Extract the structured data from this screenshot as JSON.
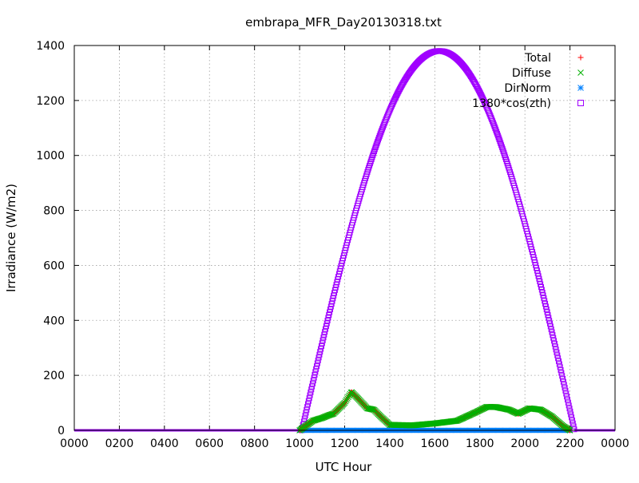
{
  "chart_data": {
    "type": "scatter",
    "title": "embrapa_MFR_Day20130318.txt",
    "xlabel": "UTC Hour",
    "ylabel": "Irradiance (W/m2)",
    "xlim": [
      0,
      24
    ],
    "ylim": [
      0,
      1400
    ],
    "x_tick_labels": [
      "0000",
      "0200",
      "0400",
      "0600",
      "0800",
      "1000",
      "1200",
      "1400",
      "1600",
      "1800",
      "2000",
      "2200",
      "0000"
    ],
    "y_tick_labels": [
      "0",
      "200",
      "400",
      "600",
      "800",
      "1000",
      "1200",
      "1400"
    ],
    "grid": true,
    "legend_position": "top-right",
    "series": [
      {
        "name": "Total",
        "color": "#ff0000",
        "marker": "plus",
        "x": [
          0,
          10.0,
          10.6,
          11.0,
          11.3,
          11.5,
          12.0,
          12.3,
          12.6,
          13.0,
          13.3,
          13.6,
          14.0,
          15.0,
          16.0,
          17.0,
          17.8,
          18.3,
          18.7,
          19.3,
          19.7,
          20.2,
          20.7,
          21.2,
          21.7,
          22.0,
          24
        ],
        "y": [
          0,
          0,
          35,
          45,
          55,
          60,
          100,
          140,
          115,
          80,
          75,
          50,
          20,
          18,
          25,
          35,
          65,
          85,
          85,
          75,
          60,
          80,
          75,
          50,
          15,
          0,
          0
        ]
      },
      {
        "name": "Diffuse",
        "color": "#00b000",
        "marker": "cross",
        "x": [
          0,
          10.0,
          10.6,
          11.0,
          11.3,
          11.5,
          12.0,
          12.3,
          12.6,
          13.0,
          13.3,
          13.6,
          14.0,
          15.0,
          16.0,
          17.0,
          17.8,
          18.3,
          18.7,
          19.3,
          19.7,
          20.2,
          20.7,
          21.2,
          21.7,
          22.0,
          24
        ],
        "y": [
          0,
          0,
          35,
          45,
          55,
          60,
          100,
          140,
          115,
          80,
          75,
          50,
          20,
          18,
          25,
          35,
          65,
          85,
          85,
          75,
          60,
          80,
          75,
          50,
          15,
          0,
          0
        ]
      },
      {
        "name": "DirNorm",
        "color": "#0080ff",
        "marker": "star",
        "x": [
          10.0,
          11.0,
          12.0,
          13.0,
          14.0,
          15.0,
          16.0,
          17.0,
          18.0,
          19.0,
          20.0,
          21.0,
          22.0
        ],
        "y": [
          0,
          0,
          0,
          0,
          0,
          0,
          0,
          0,
          0,
          0,
          0,
          0,
          0
        ]
      },
      {
        "name": "1380*cos(zth)",
        "color": "#a000ff",
        "marker": "square",
        "amplitude": 1380,
        "peak_x": 16.2,
        "sunrise_x": 10.1,
        "sunset_x": 22.2
      }
    ]
  }
}
